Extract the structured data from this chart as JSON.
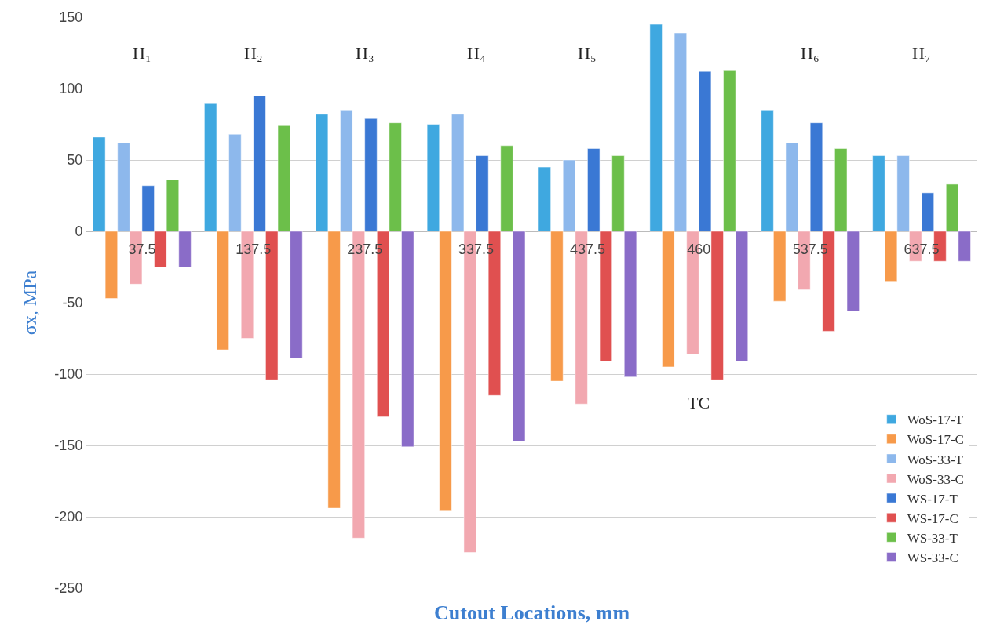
{
  "chart_data": {
    "type": "bar",
    "xlabel": "Cutout Locations, mm",
    "ylabel": "σx, MPa",
    "categories": [
      "37.5",
      "137.5",
      "237.5",
      "337.5",
      "437.5",
      "460",
      "537.5",
      "637.5"
    ],
    "series": [
      {
        "name": "WoS-17-T",
        "color": "#3fa8e0",
        "values": [
          66,
          90,
          82,
          75,
          45,
          145,
          85,
          53
        ]
      },
      {
        "name": "WoS-17-C",
        "color": "#f79a4a",
        "values": [
          -47,
          -83,
          -194,
          -196,
          -105,
          -95,
          -49,
          -35
        ]
      },
      {
        "name": "WoS-33-T",
        "color": "#8db8ec",
        "values": [
          62,
          68,
          85,
          82,
          50,
          139,
          62,
          53
        ]
      },
      {
        "name": "WoS-33-C",
        "color": "#f2a8b0",
        "values": [
          -37,
          -75,
          -215,
          -225,
          -121,
          -86,
          -41,
          -21
        ]
      },
      {
        "name": "WS-17-T",
        "color": "#3a78d4",
        "values": [
          32,
          95,
          79,
          53,
          58,
          112,
          76,
          27
        ]
      },
      {
        "name": "WS-17-C",
        "color": "#e05050",
        "values": [
          -25,
          -104,
          -130,
          -115,
          -91,
          -104,
          -70,
          -21
        ]
      },
      {
        "name": "WS-33-T",
        "color": "#6cbf4a",
        "values": [
          36,
          74,
          76,
          60,
          53,
          113,
          58,
          33
        ]
      },
      {
        "name": "WS-33-C",
        "color": "#8a6cc8",
        "values": [
          -25,
          -89,
          -151,
          -147,
          -102,
          -91,
          -56,
          -21
        ]
      }
    ],
    "annotations": [
      {
        "text": "H₁",
        "x": "37.5",
        "y": 125
      },
      {
        "text": "H₂",
        "x": "137.5",
        "y": 125
      },
      {
        "text": "H₃",
        "x": "237.5",
        "y": 125
      },
      {
        "text": "H₄",
        "x": "337.5",
        "y": 125
      },
      {
        "text": "H₅",
        "x": "437.5",
        "y": 125
      },
      {
        "text": "TC",
        "x": "460",
        "y": -120
      },
      {
        "text": "H₆",
        "x": "537.5",
        "y": 125
      },
      {
        "text": "H₇",
        "x": "637.5",
        "y": 125
      }
    ],
    "ylim": [
      -250,
      150
    ],
    "yticks": [
      -250,
      -200,
      -150,
      -100,
      -50,
      0,
      50,
      100,
      150
    ],
    "grid": "y",
    "legend": "bottom right"
  }
}
